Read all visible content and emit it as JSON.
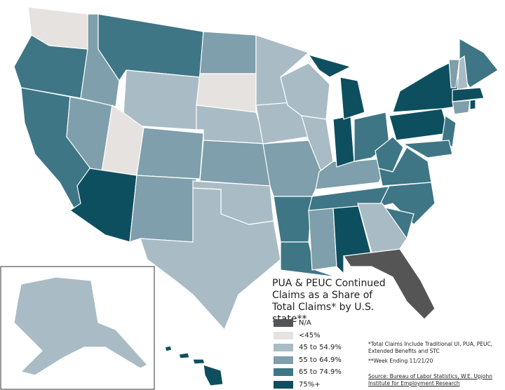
{
  "legend": {
    "title": "PUA & PEUC Continued Claims as a Share of Total Claims* by U.S. state**",
    "items": [
      {
        "label": "N/A",
        "color": "#555555"
      },
      {
        "label": "<45%",
        "color": "#e6e2e0"
      },
      {
        "label": "45 to 54.9%",
        "color": "#a9bcc5"
      },
      {
        "label": "55 to 64.9%",
        "color": "#7e9fab"
      },
      {
        "label": "65 to 74.9%",
        "color": "#3e7685"
      },
      {
        "label": "75%+",
        "color": "#0d4f5f"
      }
    ]
  },
  "notes": [
    "*Total Claims Include Traditional UI, PUA, PEUC, Extended Benefits and STC",
    "**Week Ending 11/21/20"
  ],
  "source": "Source: Bureau of Labor Statistics, W.E. Upjohn Institute for Employment Research"
}
